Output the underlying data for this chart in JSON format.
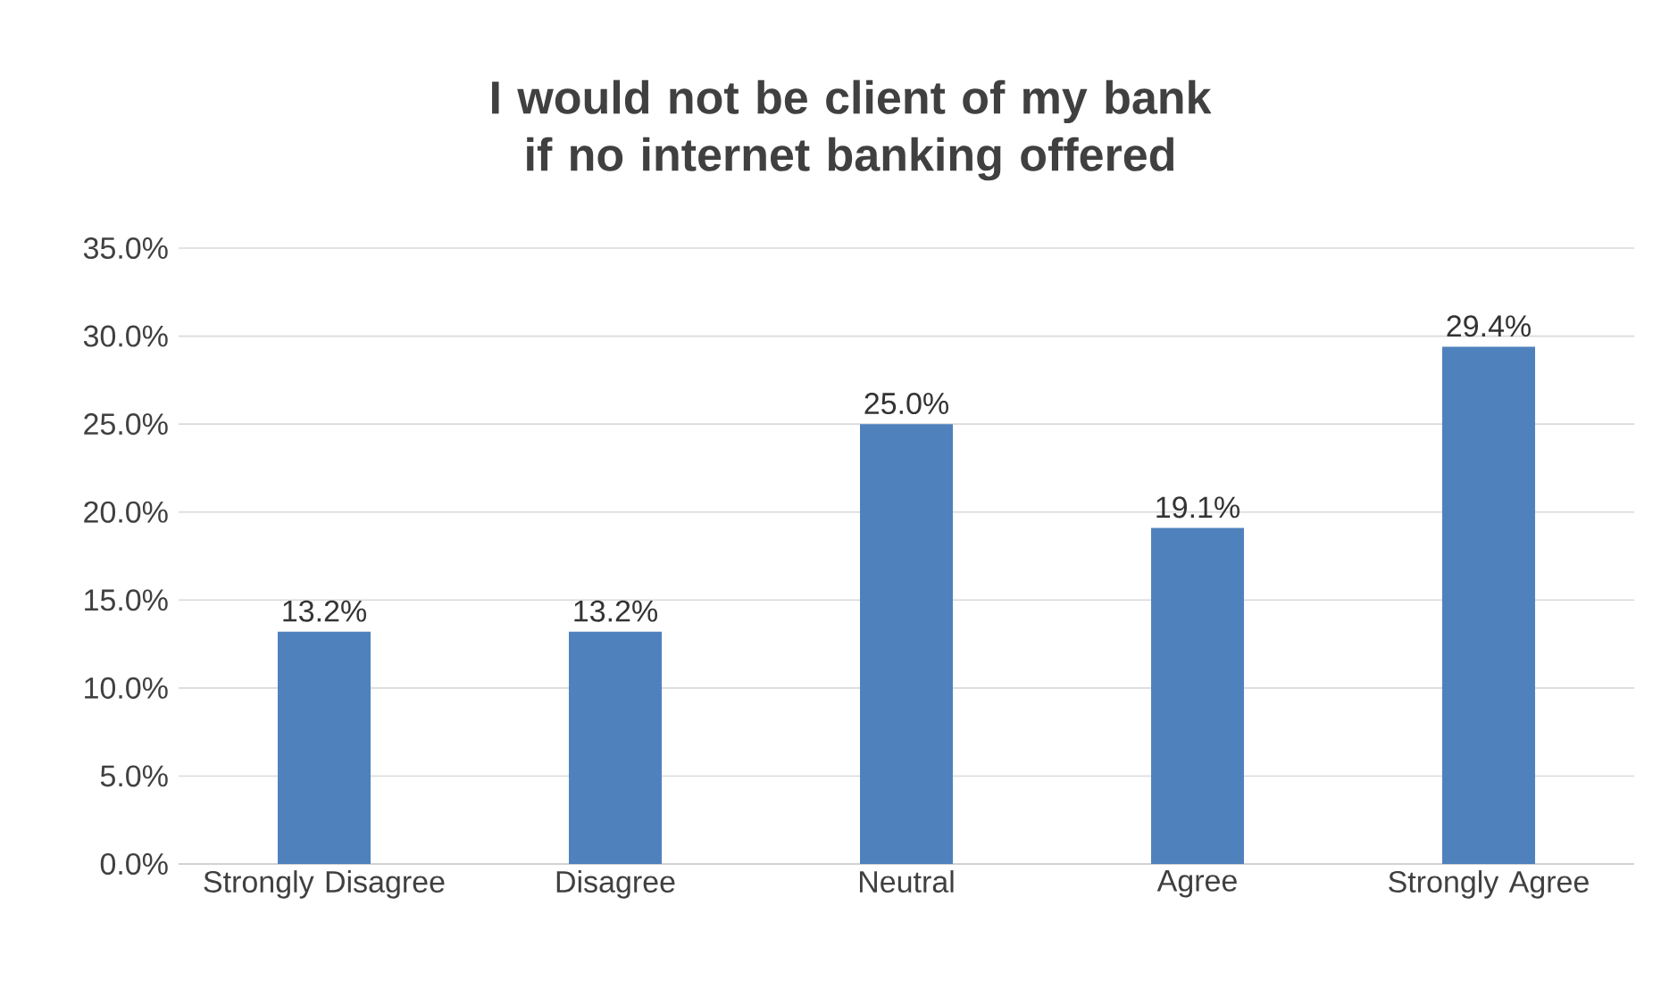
{
  "chart_data": {
    "type": "bar",
    "title": "I would not be client of my bank if no internet banking offered",
    "categories": [
      "Strongly Disagree",
      "Disagree",
      "Neutral",
      "Agree",
      "Strongly Agree"
    ],
    "values": [
      13.2,
      13.2,
      25.0,
      19.1,
      29.4
    ],
    "color": "#4f81bd",
    "value_labels": [
      "13.2%",
      "13.2%",
      "25.0%",
      "19.1%",
      "29.4%"
    ],
    "ylim": [
      0,
      35
    ],
    "yticks": [
      {
        "value": 0,
        "label": "0.0%"
      },
      {
        "value": 5,
        "label": "5.0%"
      },
      {
        "value": 10,
        "label": "10.0%"
      },
      {
        "value": 15,
        "label": "15.0%"
      },
      {
        "value": 20,
        "label": "20.0%"
      },
      {
        "value": 25,
        "label": "25.0%"
      },
      {
        "value": 30,
        "label": "30.0%"
      },
      {
        "value": 35,
        "label": "35.0%"
      }
    ],
    "grid": "y"
  }
}
